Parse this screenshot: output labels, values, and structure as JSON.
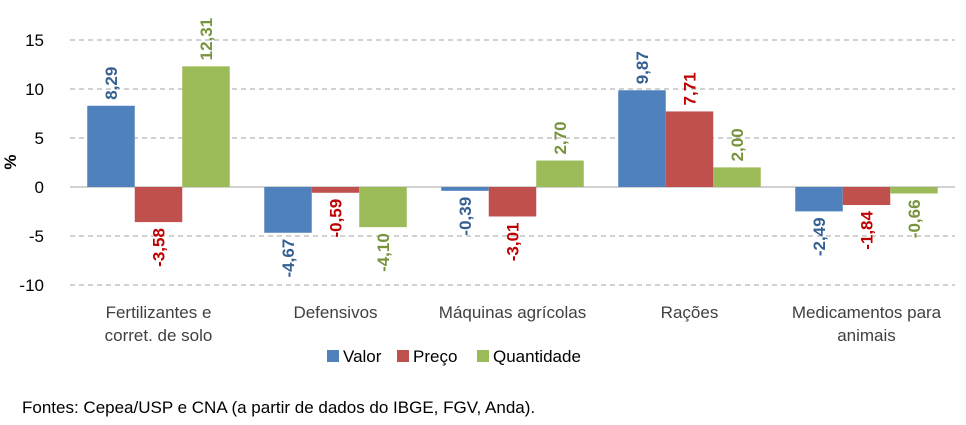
{
  "chart_data": {
    "type": "bar",
    "ylabel": "%",
    "ylim": [
      -10,
      15
    ],
    "yticks": [
      15,
      10,
      5,
      0,
      -5,
      -10
    ],
    "grid": true,
    "legend_position": "bottom",
    "categories": [
      "Fertilizantes e\ncorret. de solo",
      "Defensivos",
      "Máquinas agrícolas",
      "Rações",
      "Medicamentos para\nanimais"
    ],
    "series": [
      {
        "name": "Valor",
        "color": "#4f81bd",
        "label_color": "#376092",
        "values": [
          8.29,
          -4.67,
          -0.39,
          9.87,
          -2.49
        ],
        "labels": [
          "8,29",
          "-4,67",
          "-0,39",
          "9,87",
          "-2,49"
        ]
      },
      {
        "name": "Preço",
        "color": "#c0504d",
        "label_color": "#c00000",
        "values": [
          -3.58,
          -0.59,
          -3.01,
          7.71,
          -1.84
        ],
        "labels": [
          "-3,58",
          "-0,59",
          "-3,01",
          "7,71",
          "-1,84"
        ]
      },
      {
        "name": "Quantidade",
        "color": "#9bbb59",
        "label_color": "#77933c",
        "values": [
          12.31,
          -4.1,
          2.7,
          2.0,
          -0.66
        ],
        "labels": [
          "12,31",
          "-4,10",
          "2,70",
          "2,00",
          "-0,66"
        ]
      }
    ]
  },
  "source": "Fontes: Cepea/USP e CNA (a partir de dados do IBGE, FGV, Anda)."
}
